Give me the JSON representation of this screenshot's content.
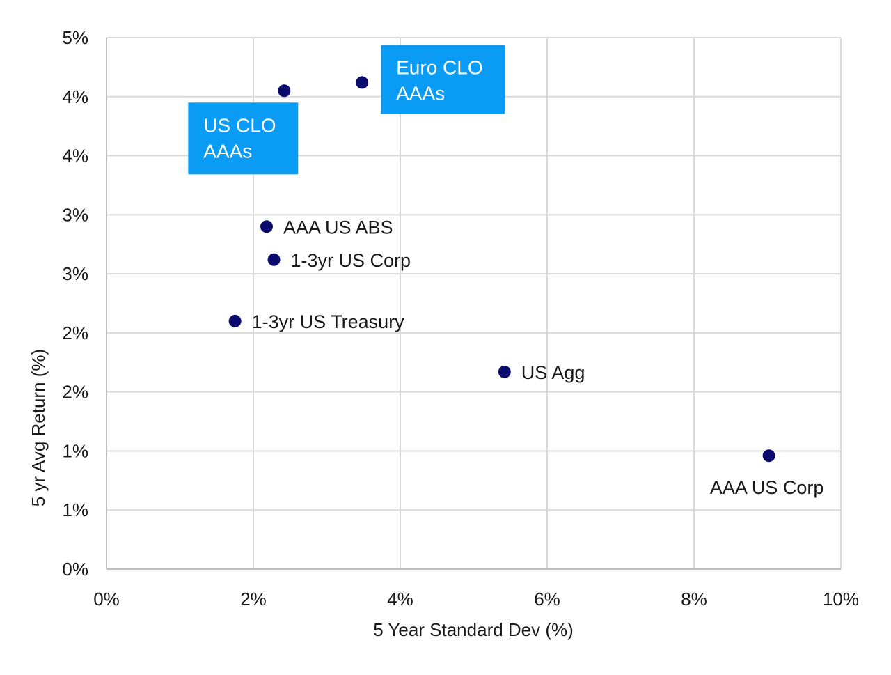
{
  "chart_data": {
    "type": "scatter",
    "xlabel": "5 Year Standard Dev (%)",
    "ylabel": "5 yr Avg Return (%)",
    "xlim": [
      0,
      10
    ],
    "ylim": [
      0,
      4.5
    ],
    "x_ticks": [
      {
        "value": 0,
        "label": "0%"
      },
      {
        "value": 2,
        "label": "2%"
      },
      {
        "value": 4,
        "label": "4%"
      },
      {
        "value": 6,
        "label": "6%"
      },
      {
        "value": 8,
        "label": "8%"
      },
      {
        "value": 10,
        "label": "10%"
      }
    ],
    "y_ticks": [
      {
        "value": 0,
        "label": "0%"
      },
      {
        "value": 0.5,
        "label": "1%"
      },
      {
        "value": 1.0,
        "label": "1%"
      },
      {
        "value": 1.5,
        "label": "2%"
      },
      {
        "value": 2.0,
        "label": "2%"
      },
      {
        "value": 2.5,
        "label": "3%"
      },
      {
        "value": 3.0,
        "label": "3%"
      },
      {
        "value": 3.5,
        "label": "4%"
      },
      {
        "value": 4.0,
        "label": "4%"
      },
      {
        "value": 4.5,
        "label": "5%"
      }
    ],
    "grid": true,
    "point_color": "#0b0b6e",
    "callout_color": "#0a9bf5",
    "points": [
      {
        "label": "US CLO AAAs",
        "x": 2.42,
        "y": 4.05,
        "label_style": "callout",
        "callout_lines": [
          "US CLO",
          "AAAs"
        ]
      },
      {
        "label": "Euro CLO AAAs",
        "x": 3.48,
        "y": 4.12,
        "label_style": "callout",
        "callout_lines": [
          "Euro CLO",
          "AAAs"
        ]
      },
      {
        "label": "AAA US ABS",
        "x": 2.18,
        "y": 2.9,
        "label_style": "right"
      },
      {
        "label": "1-3yr US Corp",
        "x": 2.28,
        "y": 2.62,
        "label_style": "right"
      },
      {
        "label": "1-3yr US Treasury",
        "x": 1.75,
        "y": 2.1,
        "label_style": "right"
      },
      {
        "label": "US Agg",
        "x": 5.42,
        "y": 1.67,
        "label_style": "right"
      },
      {
        "label": "AAA US Corp",
        "x": 9.02,
        "y": 0.96,
        "label_style": "below"
      }
    ]
  }
}
